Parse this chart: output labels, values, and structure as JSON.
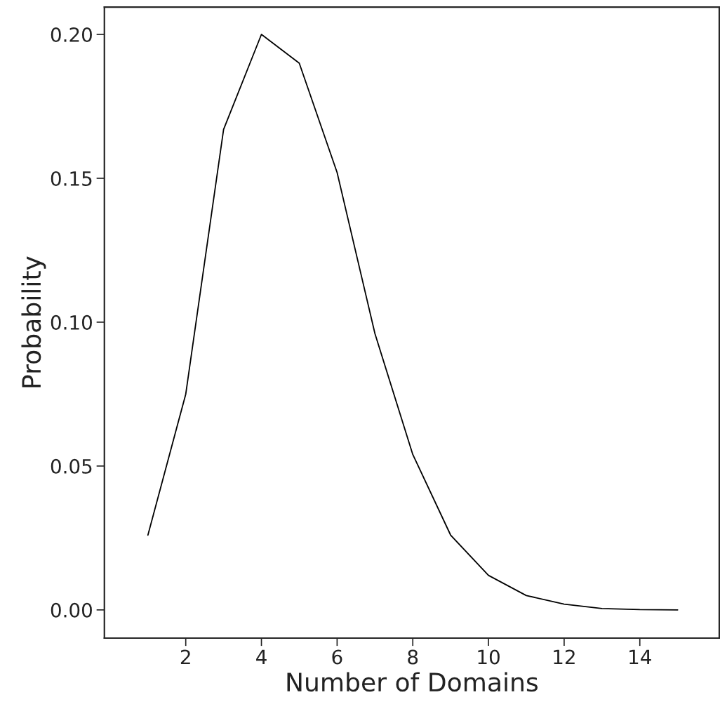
{
  "chart_data": {
    "type": "line",
    "xlabel": "Number of Domains",
    "ylabel": "Probability",
    "x": [
      1,
      2,
      3,
      4,
      5,
      6,
      7,
      8,
      9,
      10,
      11,
      12,
      13,
      14,
      15
    ],
    "series": [
      {
        "color": "#000000",
        "values": [
          0.026,
          0.075,
          0.167,
          0.2,
          0.19,
          0.152,
          0.096,
          0.054,
          0.026,
          0.012,
          0.005,
          0.002,
          0.0005,
          0.0001,
          0.0
        ]
      }
    ],
    "xlim": [
      -0.15,
      16.1
    ],
    "ylim": [
      -0.0098,
      0.2095
    ],
    "xticks": [
      2,
      4,
      6,
      8,
      10,
      12,
      14
    ],
    "yticks": [
      {
        "value": 0,
        "label": "0.00"
      },
      {
        "value": 0.05,
        "label": "0.05"
      },
      {
        "value": 0.1,
        "label": "0.10"
      },
      {
        "value": 0.15,
        "label": "0.15"
      },
      {
        "value": 0.2,
        "label": "0.20"
      }
    ],
    "grid": false,
    "marker": "none",
    "line_style": "solid"
  }
}
